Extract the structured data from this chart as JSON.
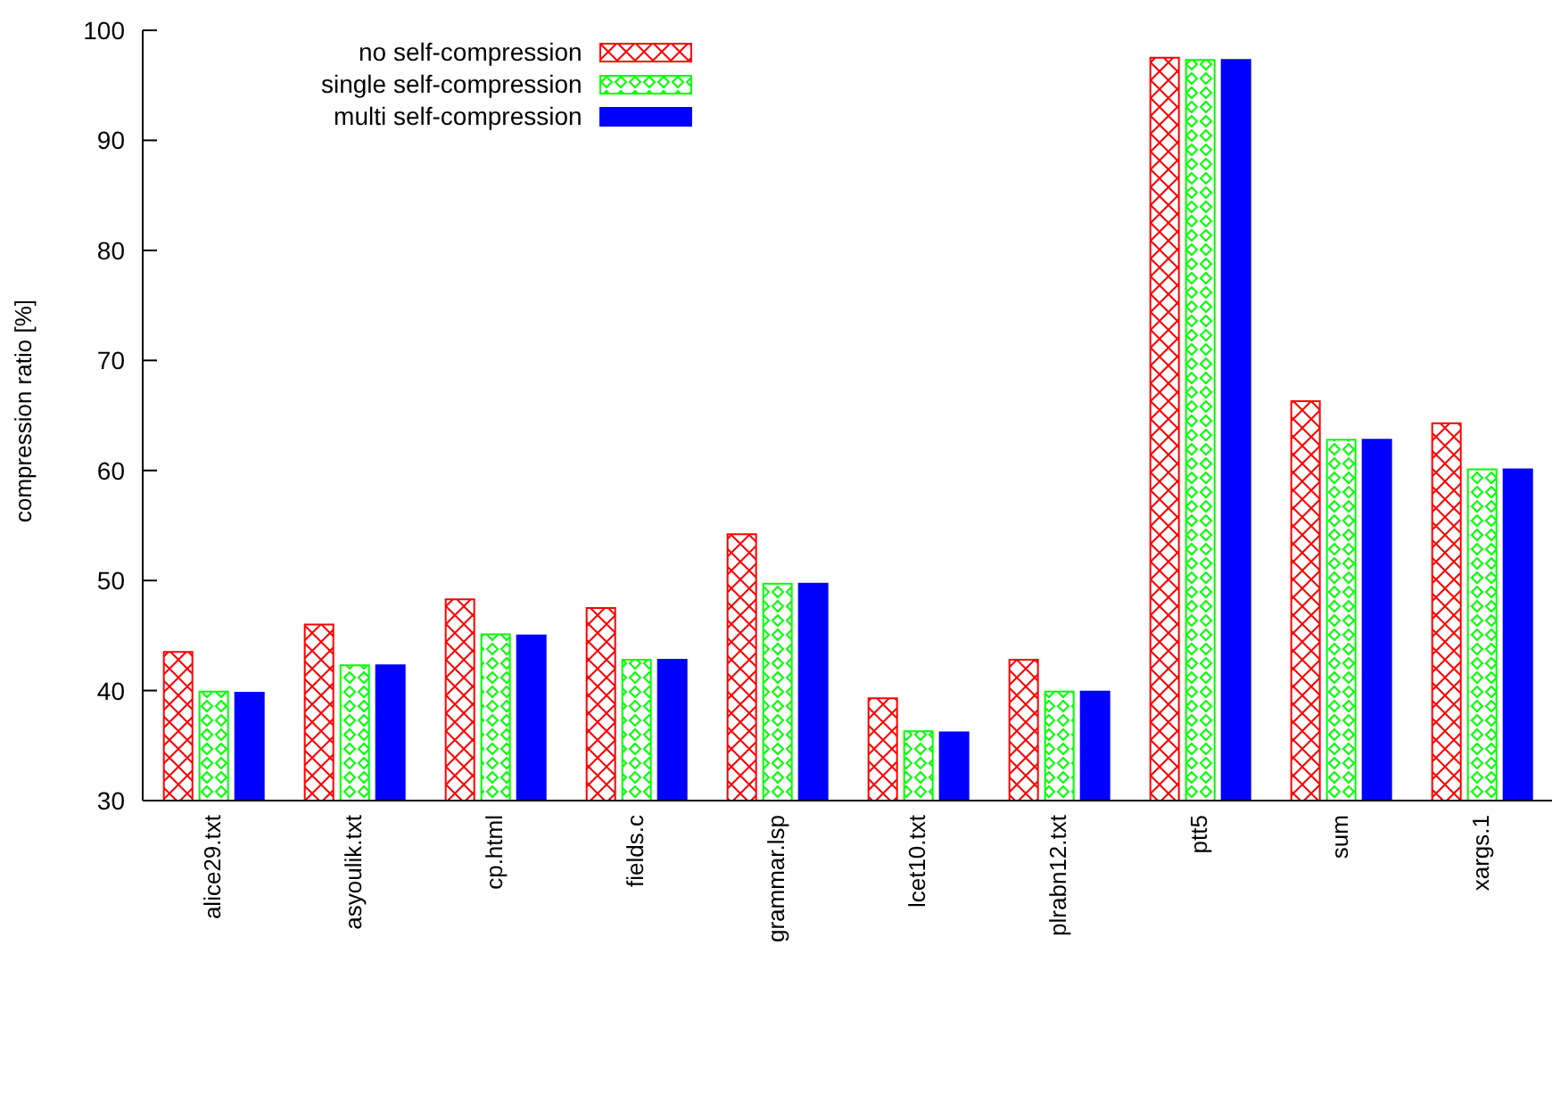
{
  "chart_data": {
    "type": "bar",
    "ylabel": "compression ratio [%]",
    "categories": [
      "alice29.txt",
      "asyoulik.txt",
      "cp.html",
      "fields.c",
      "grammar.lsp",
      "lcet10.txt",
      "plrabn12.txt",
      "ptt5",
      "sum",
      "xargs.1"
    ],
    "series": [
      {
        "name": "no self-compression",
        "color": "#ff0000",
        "values": [
          43.5,
          46.0,
          48.3,
          47.5,
          54.2,
          39.3,
          42.8,
          97.5,
          66.3,
          64.3
        ]
      },
      {
        "name": "single self-compression",
        "color": "#00ff00",
        "values": [
          39.9,
          42.3,
          45.1,
          42.8,
          49.7,
          36.3,
          39.9,
          97.3,
          62.8,
          60.1
        ]
      },
      {
        "name": "multi self-compression",
        "color": "#0000ff",
        "values": [
          39.8,
          42.3,
          45.0,
          42.8,
          49.7,
          36.2,
          39.9,
          97.3,
          62.8,
          60.1
        ]
      }
    ],
    "ylim": [
      30,
      100
    ],
    "yticks": [
      30,
      40,
      50,
      60,
      70,
      80,
      90,
      100
    ],
    "grid": false,
    "legend": "top left"
  }
}
